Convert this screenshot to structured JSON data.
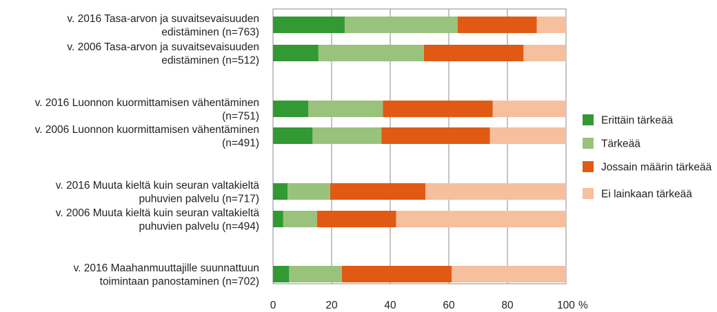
{
  "chart_data": {
    "type": "bar",
    "orientation": "horizontal",
    "stacked": true,
    "unit": "%",
    "xlim": [
      0,
      100
    ],
    "ticks": [
      "0",
      "20",
      "40",
      "60",
      "80",
      "100"
    ],
    "unit_label": "%",
    "grid": "vertical",
    "legend_position": "right",
    "categories": [
      [
        "v. 2016 Tasa-arvon ja suvaitsevaisuuden",
        "edistäminen (n=763)"
      ],
      [
        "v. 2006 Tasa-arvon ja suvaitsevaisuuden",
        "edistäminen (n=512)"
      ],
      [
        "v. 2016 Luonnon kuormittamisen vähentäminen",
        "(n=751)"
      ],
      [
        "v. 2006 Luonnon kuormittamisen vähentäminen",
        "(n=491)"
      ],
      [
        "v. 2016 Muuta kieltä kuin seuran valtakieltä",
        "puhuvien palvelu (n=717)"
      ],
      [
        "v. 2006 Muuta kieltä kuin seuran valtakieltä",
        "puhuvien palvelu (n=494)"
      ],
      [
        "v. 2016 Maahanmuuttajille suunnattuun",
        "toimintaan panostaminen (n=702)"
      ]
    ],
    "series": [
      {
        "name": "Erittäin tärkeää",
        "color": "#339933",
        "values": [
          24.5,
          15.5,
          12,
          13.5,
          5,
          3.5,
          5.5
        ]
      },
      {
        "name": "Tärkeää",
        "color": "#99c37c",
        "values": [
          38.5,
          36,
          25.5,
          23.5,
          14.5,
          11.5,
          18
        ]
      },
      {
        "name": "Jossain määrin tärkeää",
        "color": "#e05a14",
        "values": [
          27,
          34,
          37.5,
          37,
          32.5,
          27,
          37.5
        ]
      },
      {
        "name": "Ei lainkaan tärkeää",
        "color": "#f6bf9d",
        "values": [
          10,
          14.5,
          25,
          26,
          48,
          58,
          39
        ]
      }
    ]
  }
}
